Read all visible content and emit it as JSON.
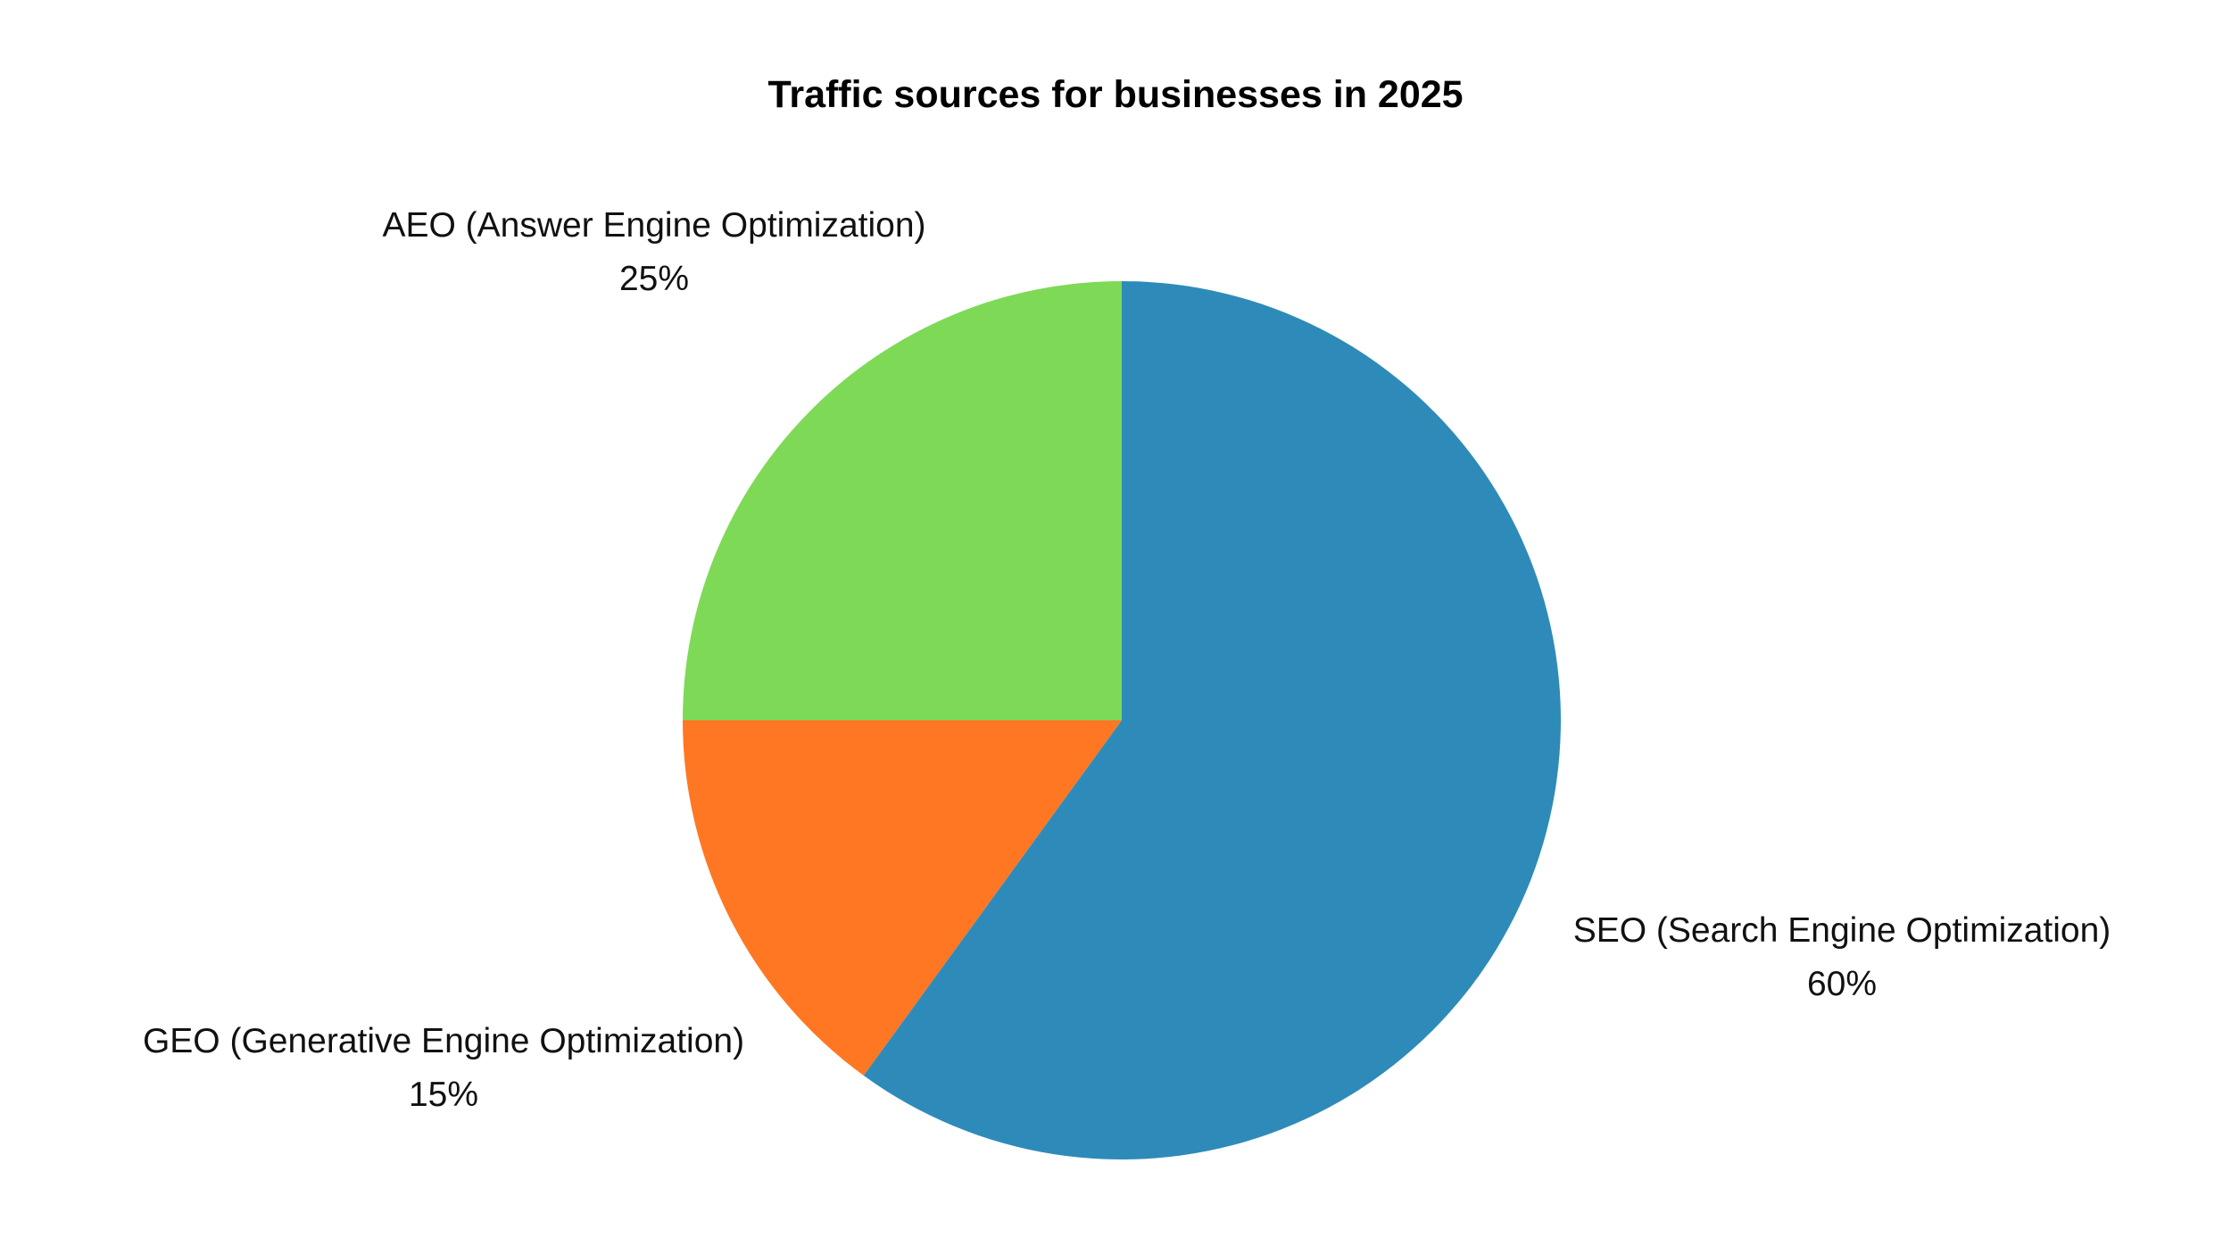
{
  "chart_data": {
    "type": "pie",
    "title": "Traffic sources for businesses in 2025",
    "start_angle_deg": 90,
    "direction": "counterclockwise",
    "slices": [
      {
        "label": "AEO (Answer Engine Optimization)",
        "value": 25,
        "percent_label": "25%",
        "color": "#7ed957"
      },
      {
        "label": "GEO (Generative Engine Optimization)",
        "value": 15,
        "percent_label": "15%",
        "color": "#ff7722"
      },
      {
        "label": "SEO (Search Engine Optimization)",
        "value": 60,
        "percent_label": "60%",
        "color": "#2e8bb9"
      }
    ]
  }
}
